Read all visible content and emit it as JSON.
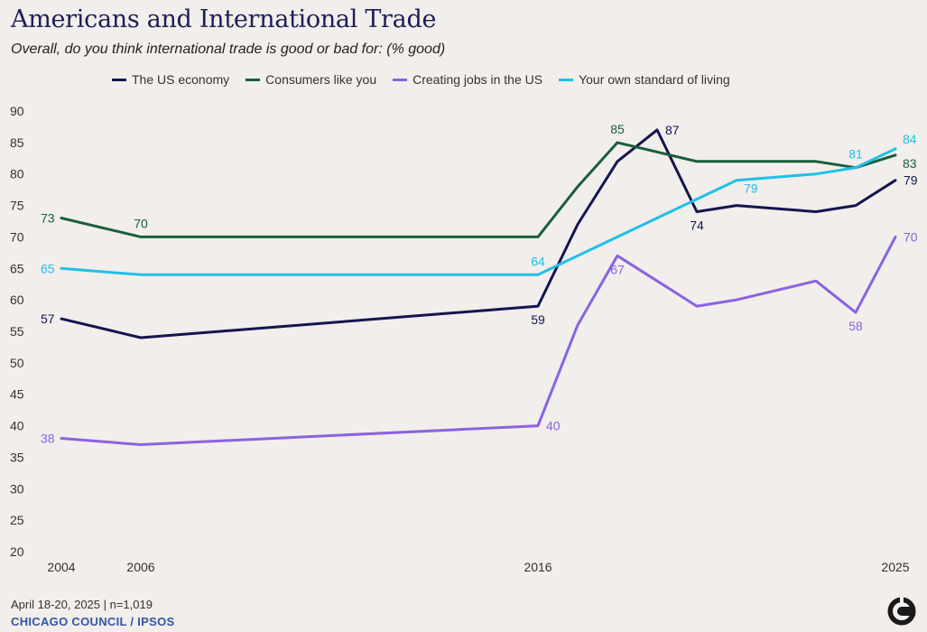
{
  "header": {
    "title": "Americans and International Trade",
    "subtitle": "Overall, do you think international trade is good or bad for: (% good)"
  },
  "footer": {
    "note": "April 18-20, 2025 | n=1,019",
    "source": "CHICAGO COUNCIL / IPSOS"
  },
  "logo": {
    "icon": "chicago-council-logo-icon",
    "color": "#1a1a1a"
  },
  "chart_data": {
    "type": "line",
    "xlabel": "",
    "ylabel": "",
    "ylim": [
      20,
      90
    ],
    "yticks": [
      20,
      25,
      30,
      35,
      40,
      45,
      50,
      55,
      60,
      65,
      70,
      75,
      80,
      85,
      90
    ],
    "xlim": [
      2004,
      2025
    ],
    "xticks": [
      2004,
      2006,
      2016,
      2025
    ],
    "grid": false,
    "legend_position": "top",
    "x": [
      2004,
      2006,
      2016,
      2017,
      2018,
      2019,
      2020,
      2021,
      2023,
      2024,
      2025
    ],
    "series": [
      {
        "name": "The US economy",
        "color": "#15154f",
        "values": [
          57,
          54,
          59,
          72,
          82,
          87,
          74,
          75,
          74,
          75,
          79
        ],
        "labels": [
          {
            "i": 0,
            "text": "57",
            "pos": "left"
          },
          {
            "i": 2,
            "text": "59",
            "pos": "below"
          },
          {
            "i": 5,
            "text": "87",
            "pos": "right"
          },
          {
            "i": 6,
            "text": "74",
            "pos": "below"
          },
          {
            "i": 10,
            "text": "79",
            "pos": "right"
          }
        ]
      },
      {
        "name": "Consumers like you",
        "color": "#1b5e3a",
        "values": [
          73,
          70,
          70,
          78,
          85,
          83.5,
          82,
          82,
          82,
          81,
          83
        ],
        "labels": [
          {
            "i": 0,
            "text": "73",
            "pos": "left"
          },
          {
            "i": 1,
            "text": "70",
            "pos": "above"
          },
          {
            "i": 4,
            "text": "85",
            "pos": "above"
          },
          {
            "i": 10,
            "text": "83",
            "pos": "rightbelow"
          }
        ]
      },
      {
        "name": "Creating jobs in the US",
        "color": "#8a63e0",
        "values": [
          38,
          37,
          40,
          56,
          67,
          63,
          59,
          60,
          63,
          58,
          70
        ],
        "labels": [
          {
            "i": 0,
            "text": "38",
            "pos": "left"
          },
          {
            "i": 2,
            "text": "40",
            "pos": "right"
          },
          {
            "i": 4,
            "text": "67",
            "pos": "below"
          },
          {
            "i": 9,
            "text": "58",
            "pos": "below"
          },
          {
            "i": 10,
            "text": "70",
            "pos": "right"
          }
        ]
      },
      {
        "name": "Your own standard of living",
        "color": "#20bfe8",
        "values": [
          65,
          64,
          64,
          67,
          70,
          73,
          76,
          79,
          80,
          81,
          84
        ],
        "labels": [
          {
            "i": 0,
            "text": "65",
            "pos": "left"
          },
          {
            "i": 2,
            "text": "64",
            "pos": "above"
          },
          {
            "i": 7,
            "text": "79",
            "pos": "rightbelow"
          },
          {
            "i": 9,
            "text": "81",
            "pos": "above"
          },
          {
            "i": 10,
            "text": "84",
            "pos": "rightabove"
          }
        ]
      }
    ]
  }
}
